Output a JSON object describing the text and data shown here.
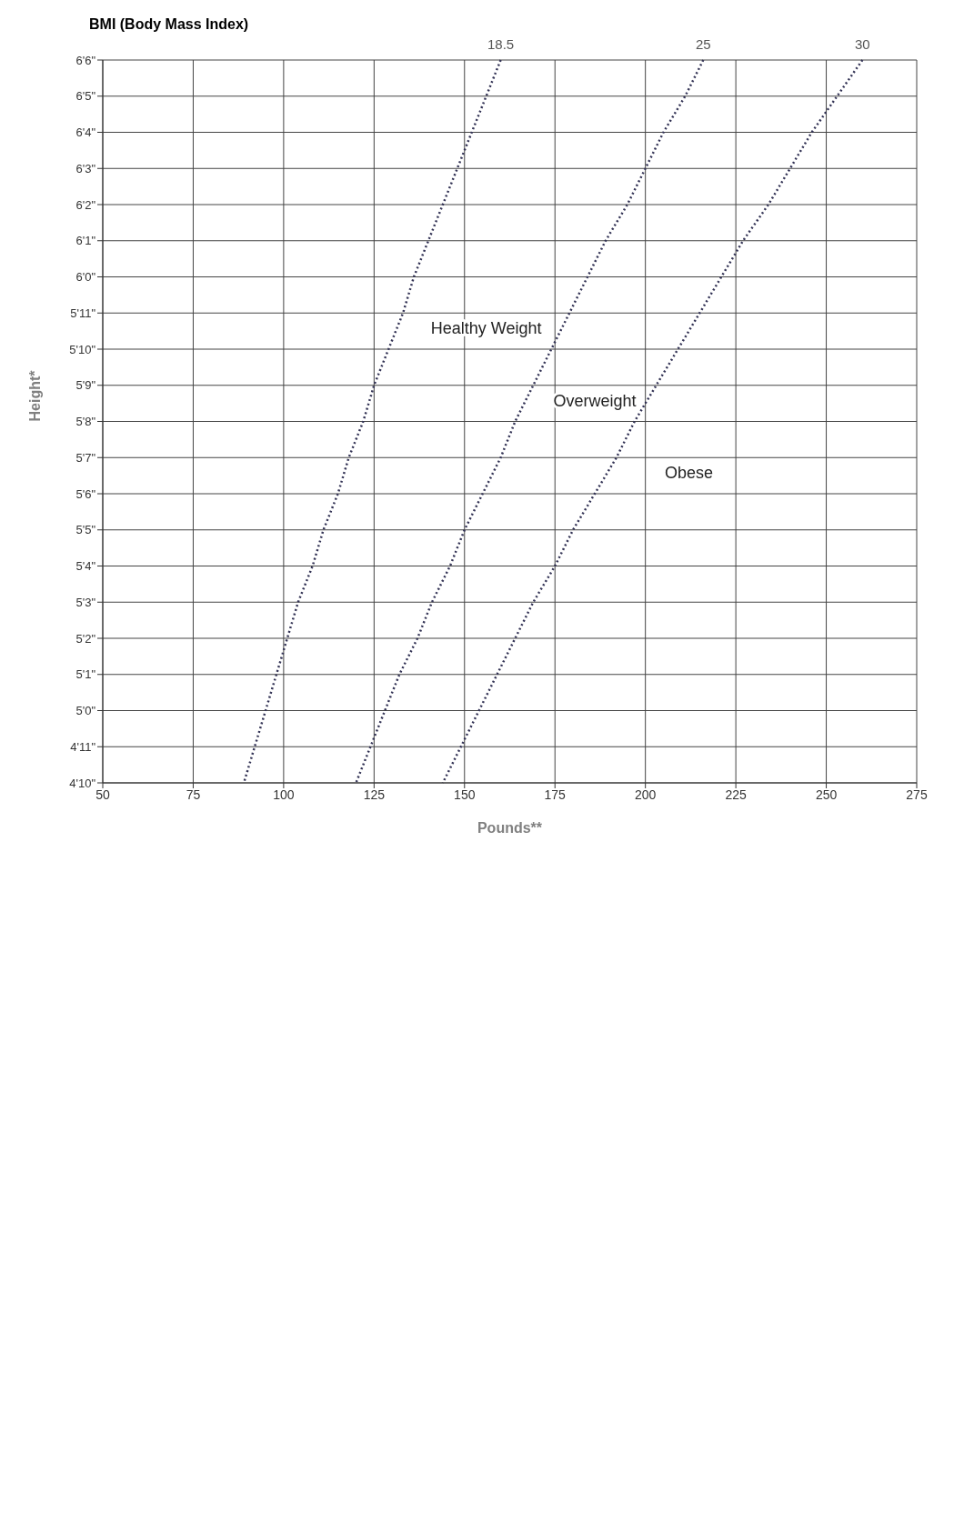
{
  "chart_data": {
    "type": "line",
    "orientation": "horizontal",
    "xlabel": "Pounds**",
    "ylabel": "Height*",
    "xlim": [
      50,
      275
    ],
    "xticks": [
      50,
      75,
      100,
      125,
      150,
      175,
      200,
      225,
      250,
      275
    ],
    "categories": [
      "6'6\"",
      "6'5\"",
      "6'4\"",
      "6'3\"",
      "6'2\"",
      "6'1\"",
      "6'0\"",
      "5'11\"",
      "5'10\"",
      "5'9\"",
      "5'8\"",
      "5'7\"",
      "5'6\"",
      "5'5\"",
      "5'4\"",
      "5'3\"",
      "5'2\"",
      "5'1\"",
      "5'0\"",
      "4'11\"",
      "4'10\""
    ],
    "series": [
      {
        "name": "18.5",
        "color": "#333355",
        "values": [
          160,
          156,
          152,
          148,
          144,
          140,
          136,
          133,
          129,
          125,
          122,
          118,
          115,
          111,
          108,
          104,
          101,
          98,
          95,
          92,
          89
        ]
      },
      {
        "name": "25",
        "color": "#333355",
        "values": [
          216,
          211,
          205,
          200,
          195,
          189,
          184,
          179,
          174,
          169,
          164,
          160,
          155,
          150,
          146,
          141,
          137,
          132,
          128,
          124,
          120
        ]
      },
      {
        "name": "30",
        "color": "#333355",
        "values": [
          260,
          253,
          246,
          240,
          234,
          227,
          221,
          215,
          209,
          203,
          197,
          192,
          186,
          180,
          175,
          169,
          164,
          159,
          154,
          149,
          144
        ]
      }
    ],
    "annotations": [
      "BMI (Body Mass Index)",
      "Healthy Weight",
      "Overweight",
      "Obese"
    ],
    "grid": true,
    "marker": "none",
    "line_style": "dotted"
  }
}
